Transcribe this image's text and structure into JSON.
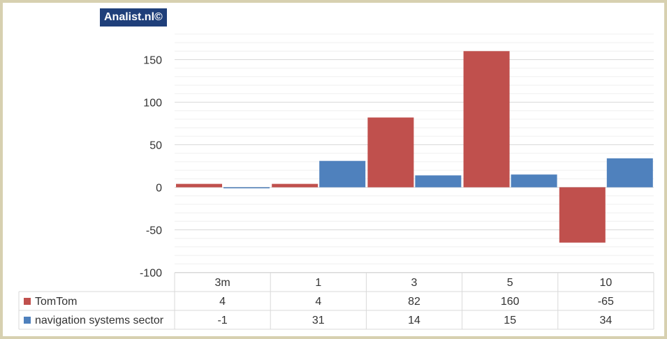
{
  "brand": {
    "label": "Analist.nl©",
    "bg": "#1f3f7a"
  },
  "chart_data": {
    "type": "bar",
    "categories": [
      "3m",
      "1",
      "3",
      "5",
      "10"
    ],
    "series": [
      {
        "name": "TomTom",
        "values": [
          4,
          4,
          82,
          160,
          -65
        ],
        "color": "#c0504d"
      },
      {
        "name": "navigation systems sector",
        "values": [
          -1,
          31,
          14,
          15,
          34
        ],
        "color": "#4f81bd"
      }
    ],
    "ylim": [
      -100,
      180
    ],
    "yticks": [
      150,
      100,
      50,
      0,
      -50,
      -100
    ],
    "data_table": true,
    "grid": true
  }
}
